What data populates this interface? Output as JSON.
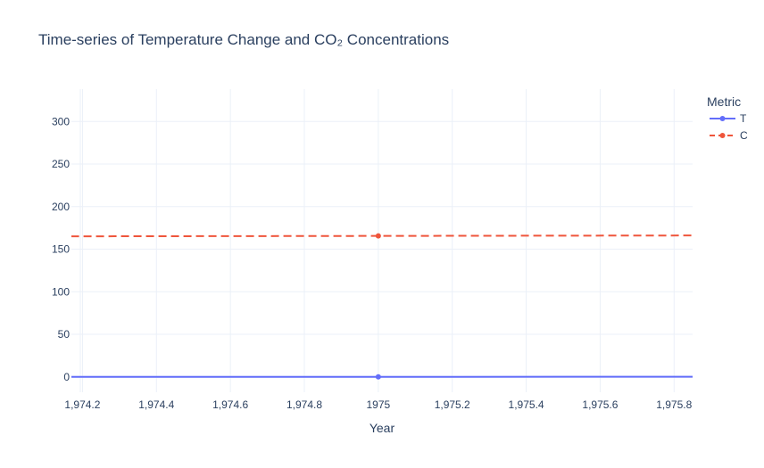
{
  "chart_data": {
    "type": "line",
    "title": "Time-series of Temperature Change and CO₂ Concentrations",
    "xlabel": "Year",
    "ylabel": "",
    "xlim": [
      1974.17,
      1975.85
    ],
    "ylim": [
      -18,
      338
    ],
    "x_ticks": [
      1974.2,
      1974.4,
      1974.6,
      1974.8,
      1975,
      1975.2,
      1975.4,
      1975.6,
      1975.8
    ],
    "x_tick_labels": [
      "1,974.2",
      "1,974.4",
      "1,974.6",
      "1,974.8",
      "1975",
      "1,975.2",
      "1,975.4",
      "1,975.6",
      "1,975.8"
    ],
    "y_ticks": [
      0,
      50,
      100,
      150,
      200,
      250,
      300
    ],
    "y_tick_labels": [
      "0",
      "50",
      "100",
      "150",
      "200",
      "250",
      "300"
    ],
    "grid": true,
    "legend": {
      "title": "Metric",
      "placement": "top-right"
    },
    "series": [
      {
        "name": "T",
        "color": "#636efa",
        "dash": "solid",
        "x": [
          1974,
          1975,
          1976
        ],
        "y": [
          0.0,
          0.1,
          0.2
        ]
      },
      {
        "name": "C",
        "color": "#ef553b",
        "dash": "dash",
        "x": [
          1974,
          1975,
          1976
        ],
        "y": [
          165.0,
          165.6,
          166.2
        ]
      }
    ],
    "markers_at": [
      1975
    ]
  }
}
